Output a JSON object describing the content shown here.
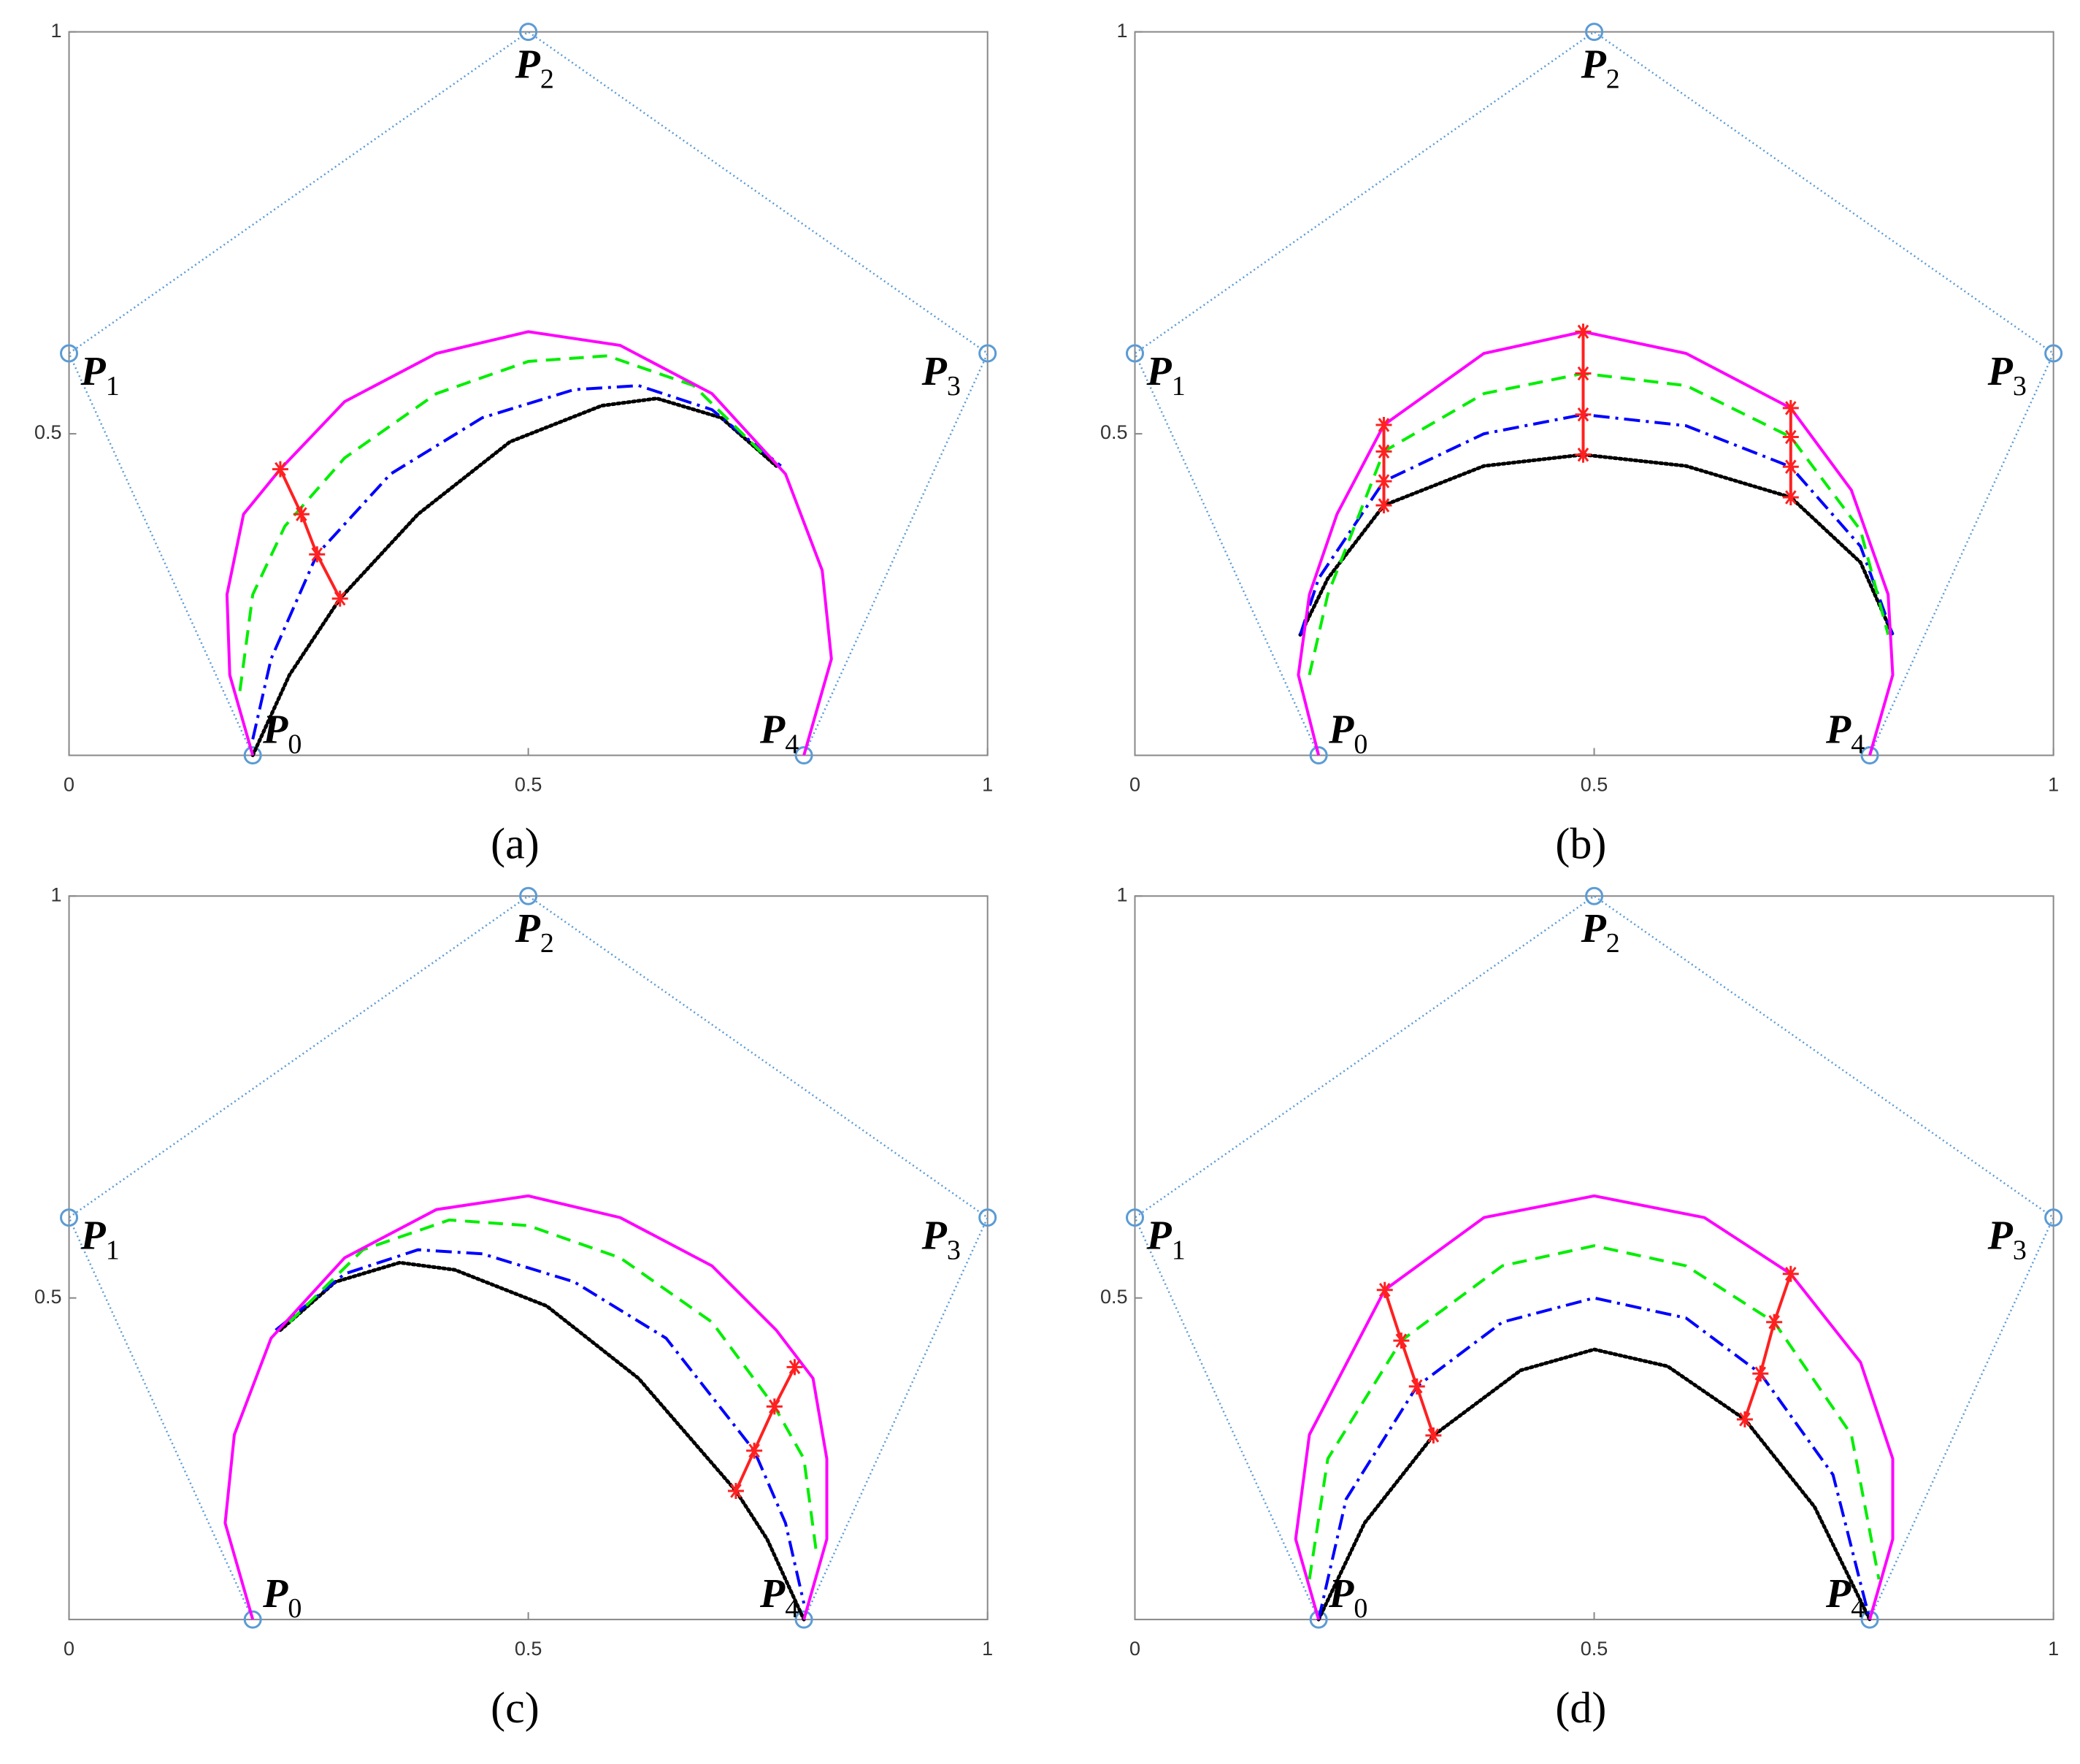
{
  "chart_data": [
    {
      "type": "line",
      "caption": "(a)",
      "xlim": [
        0,
        1
      ],
      "ylim": [
        0.1,
        1
      ],
      "xticks": [
        0,
        0.5,
        1
      ],
      "yticks": [
        0.5,
        1
      ],
      "point_labels": [
        {
          "text": "P",
          "sub": "0"
        },
        {
          "text": "P",
          "sub": "1"
        },
        {
          "text": "P",
          "sub": "2"
        },
        {
          "text": "P",
          "sub": "3"
        },
        {
          "text": "P",
          "sub": "4"
        }
      ],
      "series": [
        {
          "color": "#5b9bd5",
          "style": "polygon",
          "marker": "o",
          "x": [
            0.2,
            0,
            0.5,
            1,
            0.8
          ],
          "values": [
            0.1,
            0.6,
            1,
            0.6,
            0.1
          ]
        },
        {
          "color": "#000000",
          "style": "dotted",
          "x": [
            0.2,
            0.24,
            0.295,
            0.38,
            0.48,
            0.58,
            0.64,
            0.71,
            0.77
          ],
          "values": [
            0.1,
            0.2,
            0.295,
            0.4,
            0.49,
            0.535,
            0.544,
            0.52,
            0.46
          ]
        },
        {
          "color": "#0000ff",
          "style": "dashdot",
          "x": [
            0.2,
            0.22,
            0.27,
            0.35,
            0.45,
            0.55,
            0.62,
            0.7,
            0.775
          ],
          "values": [
            0.12,
            0.22,
            0.35,
            0.45,
            0.52,
            0.555,
            0.56,
            0.53,
            0.46
          ]
        },
        {
          "color": "#00ee00",
          "style": "dashed",
          "x": [
            0.186,
            0.2,
            0.235,
            0.3,
            0.4,
            0.5,
            0.586,
            0.68,
            0.76
          ],
          "values": [
            0.18,
            0.3,
            0.385,
            0.47,
            0.55,
            0.59,
            0.597,
            0.56,
            0.47
          ]
        },
        {
          "color": "#ff00ff",
          "style": "solid",
          "x": [
            0.2,
            0.175,
            0.172,
            0.19,
            0.23,
            0.3,
            0.4,
            0.5,
            0.6,
            0.7,
            0.78,
            0.82,
            0.83,
            0.8
          ],
          "values": [
            0.1,
            0.2,
            0.3,
            0.4,
            0.456,
            0.54,
            0.6,
            0.627,
            0.61,
            0.55,
            0.45,
            0.33,
            0.22,
            0.1
          ]
        },
        {
          "color": "#ff2020",
          "style": "solid",
          "marker": "*",
          "x": [
            0.23,
            0.253,
            0.27,
            0.295
          ],
          "values": [
            0.456,
            0.4,
            0.35,
            0.295
          ]
        }
      ]
    },
    {
      "type": "line",
      "caption": "(b)",
      "xlim": [
        0,
        1
      ],
      "ylim": [
        0.1,
        1
      ],
      "xticks": [
        0,
        0.5,
        1
      ],
      "yticks": [
        0.5,
        1
      ],
      "point_labels": [
        {
          "text": "P",
          "sub": "0"
        },
        {
          "text": "P",
          "sub": "1"
        },
        {
          "text": "P",
          "sub": "2"
        },
        {
          "text": "P",
          "sub": "3"
        },
        {
          "text": "P",
          "sub": "4"
        }
      ],
      "series": [
        {
          "color": "#5b9bd5",
          "style": "polygon",
          "marker": "o",
          "x": [
            0.2,
            0,
            0.5,
            1,
            0.8
          ],
          "values": [
            0.1,
            0.6,
            1,
            0.6,
            0.1
          ]
        },
        {
          "color": "#000000",
          "style": "dotted",
          "x": [
            0.18,
            0.21,
            0.271,
            0.38,
            0.488,
            0.6,
            0.714,
            0.79,
            0.825
          ],
          "values": [
            0.25,
            0.32,
            0.411,
            0.46,
            0.474,
            0.46,
            0.421,
            0.34,
            0.25
          ]
        },
        {
          "color": "#0000ff",
          "style": "dashdot",
          "x": [
            0.18,
            0.2,
            0.271,
            0.38,
            0.488,
            0.6,
            0.714,
            0.79,
            0.825
          ],
          "values": [
            0.25,
            0.32,
            0.441,
            0.5,
            0.524,
            0.51,
            0.459,
            0.36,
            0.25
          ]
        },
        {
          "color": "#00ee00",
          "style": "dashed",
          "x": [
            0.19,
            0.21,
            0.271,
            0.38,
            0.488,
            0.6,
            0.714,
            0.79,
            0.82
          ],
          "values": [
            0.2,
            0.3,
            0.478,
            0.55,
            0.575,
            0.56,
            0.496,
            0.38,
            0.25
          ]
        },
        {
          "color": "#ff00ff",
          "style": "solid",
          "x": [
            0.2,
            0.178,
            0.19,
            0.22,
            0.271,
            0.38,
            0.488,
            0.6,
            0.714,
            0.78,
            0.82,
            0.825,
            0.8
          ],
          "values": [
            0.1,
            0.2,
            0.3,
            0.4,
            0.511,
            0.6,
            0.627,
            0.6,
            0.532,
            0.43,
            0.3,
            0.2,
            0.1
          ]
        },
        {
          "color": "#ff2020",
          "style": "solid",
          "marker": "*",
          "x": [
            0.271,
            0.271,
            0.271,
            0.271
          ],
          "values": [
            0.511,
            0.478,
            0.441,
            0.411
          ]
        },
        {
          "color": "#ff2020",
          "style": "solid",
          "marker": "*",
          "x": [
            0.488,
            0.488,
            0.488,
            0.488
          ],
          "values": [
            0.627,
            0.575,
            0.524,
            0.474
          ]
        },
        {
          "color": "#ff2020",
          "style": "solid",
          "marker": "*",
          "x": [
            0.714,
            0.714,
            0.714,
            0.714
          ],
          "values": [
            0.532,
            0.496,
            0.459,
            0.421
          ]
        }
      ]
    },
    {
      "type": "line",
      "caption": "(c)",
      "xlim": [
        0,
        1
      ],
      "ylim": [
        0.1,
        1
      ],
      "xticks": [
        0,
        0.5,
        1
      ],
      "yticks": [
        0.5,
        1
      ],
      "point_labels": [
        {
          "text": "P",
          "sub": "0"
        },
        {
          "text": "P",
          "sub": "1"
        },
        {
          "text": "P",
          "sub": "2"
        },
        {
          "text": "P",
          "sub": "3"
        },
        {
          "text": "P",
          "sub": "4"
        }
      ],
      "series": [
        {
          "color": "#5b9bd5",
          "style": "polygon",
          "marker": "o",
          "x": [
            0.2,
            0,
            0.5,
            1,
            0.8
          ],
          "values": [
            0.1,
            0.6,
            1,
            0.6,
            0.1
          ]
        },
        {
          "color": "#000000",
          "style": "dotted",
          "x": [
            0.23,
            0.29,
            0.36,
            0.42,
            0.52,
            0.62,
            0.726,
            0.76,
            0.8
          ],
          "values": [
            0.46,
            0.52,
            0.544,
            0.535,
            0.49,
            0.4,
            0.26,
            0.2,
            0.1
          ]
        },
        {
          "color": "#0000ff",
          "style": "dashdot",
          "x": [
            0.225,
            0.3,
            0.38,
            0.45,
            0.55,
            0.65,
            0.746,
            0.78,
            0.8
          ],
          "values": [
            0.46,
            0.53,
            0.56,
            0.555,
            0.52,
            0.45,
            0.31,
            0.22,
            0.12
          ]
        },
        {
          "color": "#00ee00",
          "style": "dashed",
          "x": [
            0.24,
            0.32,
            0.414,
            0.5,
            0.6,
            0.7,
            0.768,
            0.8,
            0.814
          ],
          "values": [
            0.47,
            0.56,
            0.597,
            0.59,
            0.55,
            0.47,
            0.365,
            0.3,
            0.18
          ]
        },
        {
          "color": "#ff00ff",
          "style": "solid",
          "x": [
            0.2,
            0.17,
            0.18,
            0.22,
            0.3,
            0.4,
            0.5,
            0.6,
            0.7,
            0.77,
            0.81,
            0.825,
            0.825,
            0.8
          ],
          "values": [
            0.1,
            0.22,
            0.33,
            0.45,
            0.55,
            0.61,
            0.627,
            0.6,
            0.54,
            0.46,
            0.4,
            0.3,
            0.2,
            0.1
          ]
        },
        {
          "color": "#ff2020",
          "style": "solid",
          "marker": "*",
          "x": [
            0.79,
            0.768,
            0.746,
            0.726
          ],
          "values": [
            0.414,
            0.365,
            0.31,
            0.26
          ]
        }
      ]
    },
    {
      "type": "line",
      "caption": "(d)",
      "xlim": [
        0,
        1
      ],
      "ylim": [
        0.1,
        1
      ],
      "xticks": [
        0,
        0.5,
        1
      ],
      "yticks": [
        0.5,
        1
      ],
      "point_labels": [
        {
          "text": "P",
          "sub": "0"
        },
        {
          "text": "P",
          "sub": "1"
        },
        {
          "text": "P",
          "sub": "2"
        },
        {
          "text": "P",
          "sub": "3"
        },
        {
          "text": "P",
          "sub": "4"
        }
      ],
      "series": [
        {
          "color": "#5b9bd5",
          "style": "polygon",
          "marker": "o",
          "x": [
            0.2,
            0,
            0.5,
            1,
            0.8
          ],
          "values": [
            0.1,
            0.6,
            1,
            0.6,
            0.1
          ]
        },
        {
          "color": "#000000",
          "style": "dotted",
          "x": [
            0.2,
            0.25,
            0.325,
            0.42,
            0.5,
            0.58,
            0.664,
            0.74,
            0.8
          ],
          "values": [
            0.1,
            0.22,
            0.329,
            0.41,
            0.436,
            0.415,
            0.349,
            0.24,
            0.1
          ]
        },
        {
          "color": "#0000ff",
          "style": "dashdot",
          "x": [
            0.2,
            0.23,
            0.307,
            0.4,
            0.5,
            0.6,
            0.681,
            0.76,
            0.8
          ],
          "values": [
            0.1,
            0.25,
            0.39,
            0.47,
            0.5,
            0.475,
            0.406,
            0.28,
            0.1
          ]
        },
        {
          "color": "#00ee00",
          "style": "dashed",
          "x": [
            0.19,
            0.21,
            0.29,
            0.4,
            0.5,
            0.6,
            0.696,
            0.78,
            0.81
          ],
          "values": [
            0.15,
            0.3,
            0.447,
            0.54,
            0.565,
            0.54,
            0.47,
            0.33,
            0.15
          ]
        },
        {
          "color": "#ff00ff",
          "style": "solid",
          "x": [
            0.2,
            0.175,
            0.19,
            0.272,
            0.38,
            0.5,
            0.62,
            0.714,
            0.79,
            0.825,
            0.825,
            0.8
          ],
          "values": [
            0.1,
            0.2,
            0.33,
            0.51,
            0.6,
            0.627,
            0.6,
            0.53,
            0.42,
            0.3,
            0.2,
            0.1
          ]
        },
        {
          "color": "#ff2020",
          "style": "solid",
          "marker": "*",
          "x": [
            0.272,
            0.29,
            0.307,
            0.325
          ],
          "values": [
            0.51,
            0.447,
            0.39,
            0.329
          ]
        },
        {
          "color": "#ff2020",
          "style": "solid",
          "marker": "*",
          "x": [
            0.714,
            0.696,
            0.681,
            0.664
          ],
          "values": [
            0.53,
            0.47,
            0.406,
            0.349
          ]
        }
      ]
    }
  ]
}
